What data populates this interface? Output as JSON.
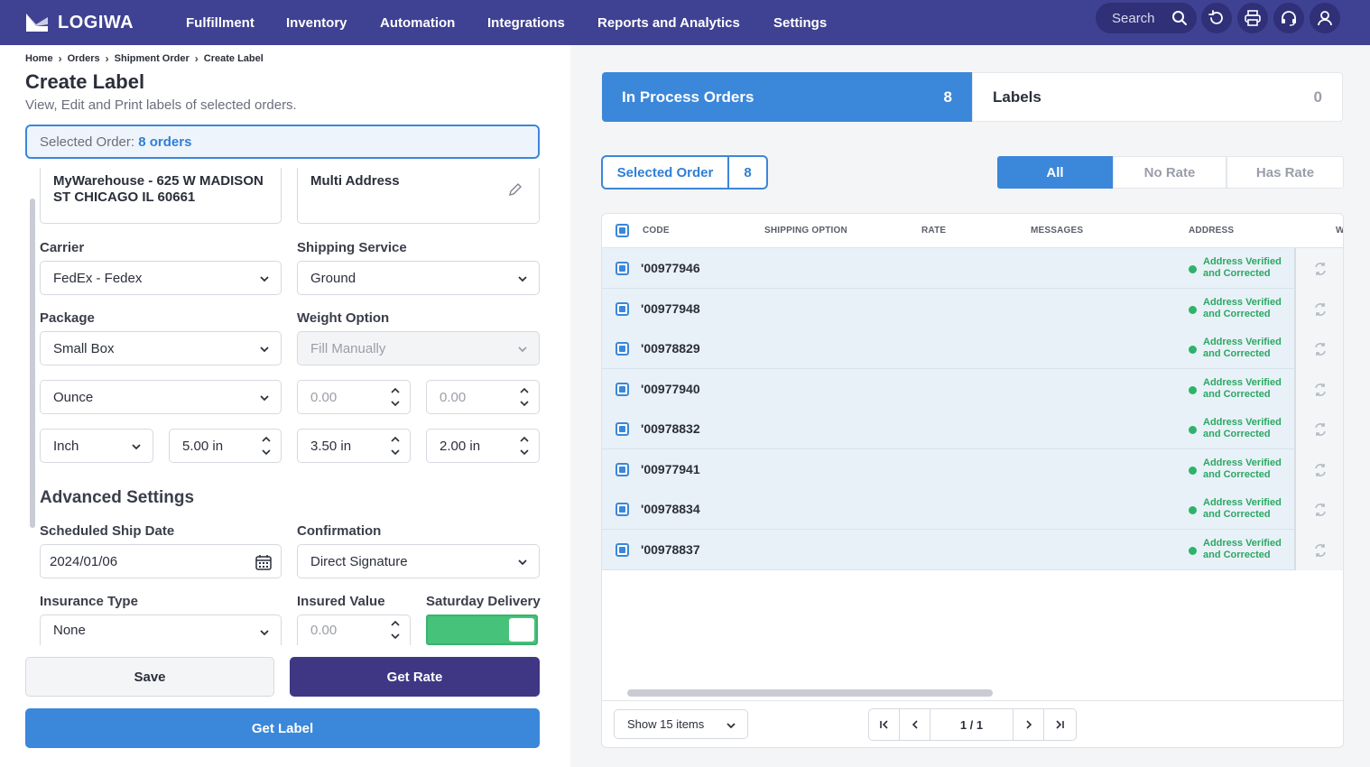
{
  "brand": {
    "name": "LOGIWA"
  },
  "nav": {
    "items": [
      {
        "label": "Fulfillment"
      },
      {
        "label": "Inventory"
      },
      {
        "label": "Automation"
      },
      {
        "label": "Integrations"
      },
      {
        "label": "Reports and Analytics"
      },
      {
        "label": "Settings"
      }
    ],
    "search_placeholder": "Search",
    "icons": [
      "search-icon",
      "refresh-icon",
      "printer-icon",
      "headset-icon",
      "user-icon"
    ]
  },
  "breadcrumb": [
    "Home",
    "Orders",
    "Shipment Order",
    "Create Label"
  ],
  "page": {
    "title": "Create Label",
    "subtitle": "View, Edit and Print labels of selected orders.",
    "selected_order_label": "Selected Order:",
    "selected_order_count": "8 orders"
  },
  "form": {
    "from_address": "MyWarehouse - 625 W MADISON ST CHICAGO IL 60661",
    "to_address": "Multi Address",
    "carrier": {
      "label": "Carrier",
      "value": "FedEx - Fedex"
    },
    "shipping_service": {
      "label": "Shipping Service",
      "value": "Ground"
    },
    "package": {
      "label": "Package",
      "value": "Small Box"
    },
    "weight_option": {
      "label": "Weight Option",
      "value": "Fill Manually"
    },
    "weight_unit": {
      "value": "Ounce"
    },
    "weight_1": {
      "value": "0.00"
    },
    "weight_2": {
      "value": "0.00"
    },
    "dimension_unit": {
      "value": "Inch"
    },
    "length": {
      "value": "5.00 in"
    },
    "width": {
      "value": "3.50 in"
    },
    "height": {
      "value": "2.00 in"
    },
    "advanced_title": "Advanced Settings",
    "ship_date": {
      "label": "Scheduled Ship Date",
      "value": "2024/01/06"
    },
    "confirmation": {
      "label": "Confirmation",
      "value": "Direct Signature"
    },
    "insurance_type": {
      "label": "Insurance Type",
      "value": "None"
    },
    "insured_value": {
      "label": "Insured Value",
      "value": "0.00"
    },
    "saturday_delivery": {
      "label": "Saturday Delivery",
      "on": true
    }
  },
  "buttons": {
    "save": "Save",
    "get_rate": "Get Rate",
    "get_label": "Get Label"
  },
  "right": {
    "tabs": [
      {
        "label": "In Process Orders",
        "count": "8"
      },
      {
        "label": "Labels",
        "count": "0"
      }
    ],
    "selected_order": {
      "label": "Selected Order",
      "count": "8"
    },
    "filters": [
      "All",
      "No Rate",
      "Has Rate"
    ],
    "columns": [
      "CODE",
      "SHIPPING OPTION",
      "RATE",
      "MESSAGES",
      "ADDRESS",
      "W"
    ],
    "rows": [
      {
        "code": "'00977946",
        "address_status_1": "Address Verified",
        "address_status_2": "and Corrected"
      },
      {
        "code": "'00977948",
        "address_status_1": "Address Verified",
        "address_status_2": "and Corrected"
      },
      {
        "code": "'00978829",
        "address_status_1": "Address Verified",
        "address_status_2": "and Corrected"
      },
      {
        "code": "'00977940",
        "address_status_1": "Address Verified",
        "address_status_2": "and Corrected"
      },
      {
        "code": "'00978832",
        "address_status_1": "Address Verified",
        "address_status_2": "and Corrected"
      },
      {
        "code": "'00977941",
        "address_status_1": "Address Verified",
        "address_status_2": "and Corrected"
      },
      {
        "code": "'00978834",
        "address_status_1": "Address Verified",
        "address_status_2": "and Corrected"
      },
      {
        "code": "'00978837",
        "address_status_1": "Address Verified",
        "address_status_2": "and Corrected"
      }
    ],
    "show_items": "Show 15 items",
    "page_indicator": "1 / 1"
  },
  "colors": {
    "nav_bg": "#3f4192",
    "accent_blue": "#3b87d9",
    "primary_purple": "#403784",
    "success_green": "#46c27a"
  }
}
